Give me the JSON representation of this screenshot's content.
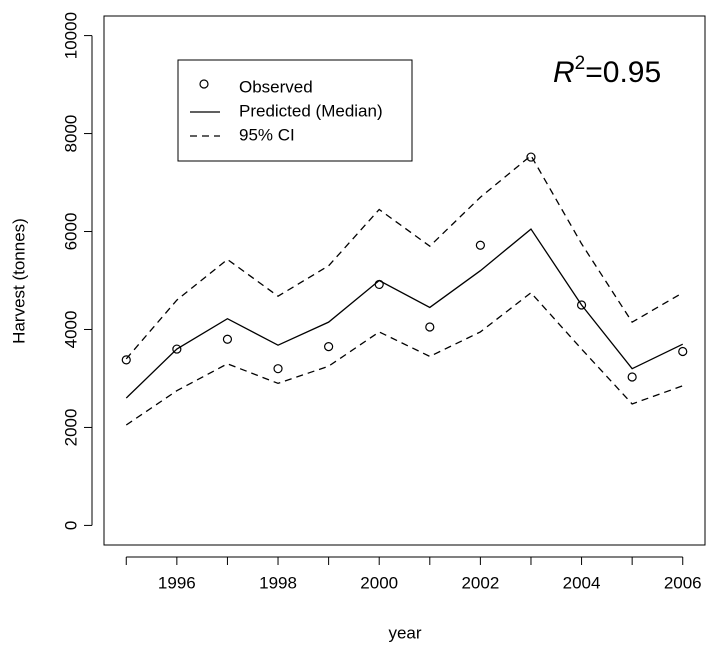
{
  "chart_data": {
    "type": "line",
    "x_label": "year",
    "y_label": "Harvest (tonnes)",
    "annotation": {
      "base": "R",
      "sup": "2",
      "rest": "=0.95"
    },
    "x": [
      1995,
      1996,
      1997,
      1998,
      1999,
      2000,
      2001,
      2002,
      2003,
      2004,
      2005,
      2006
    ],
    "series": [
      {
        "name": "Observed",
        "style": "points",
        "color": "#000000",
        "values": [
          3380,
          3600,
          3800,
          3200,
          3650,
          4920,
          4050,
          5720,
          7520,
          4500,
          3030,
          3550
        ]
      },
      {
        "name": "Predicted (Median)",
        "style": "solid",
        "color": "#000000",
        "values": [
          2600,
          3600,
          4220,
          3680,
          4150,
          5000,
          4450,
          5200,
          6050,
          4500,
          3200,
          3700
        ]
      },
      {
        "name": "95% CI",
        "style": "dashed",
        "color": "#000000",
        "values": [
          3400,
          4600,
          5430,
          4680,
          5300,
          6450,
          5700,
          6700,
          7550,
          5750,
          4150,
          4750
        ],
        "lower": [
          2050,
          2750,
          3300,
          2900,
          3250,
          3950,
          3450,
          3950,
          4750,
          3600,
          2480,
          2850
        ]
      }
    ],
    "xlim": [
      1994.56,
      2006.44
    ],
    "xticks": [
      1996,
      1998,
      2000,
      2002,
      2004,
      2006
    ],
    "ylim": [
      -400,
      10400
    ],
    "yticks": [
      0,
      2000,
      4000,
      6000,
      8000,
      10000
    ],
    "legend": "top-left"
  }
}
